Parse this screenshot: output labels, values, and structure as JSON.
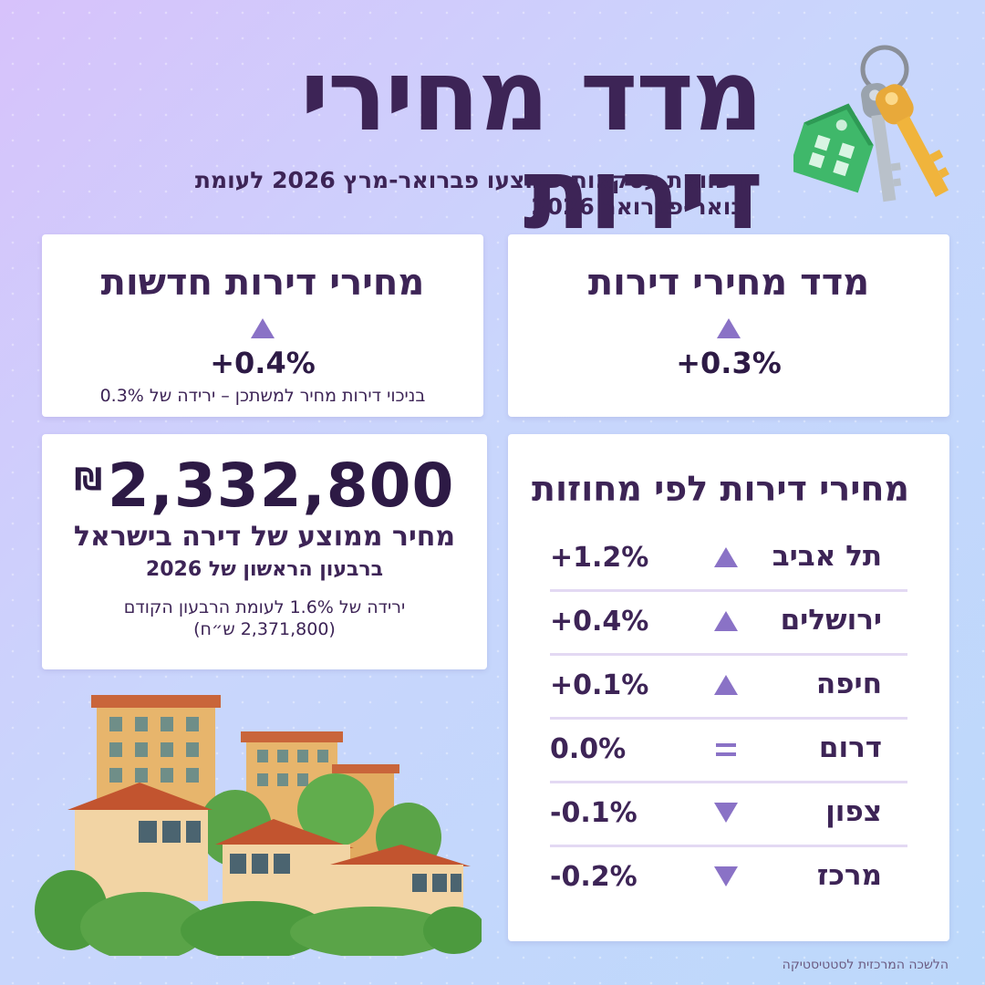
{
  "header": {
    "title": "מדד מחירי דירות",
    "subtitle": "השוואת עסקאות שבוצעו פברואר-מרץ 2026 לעומת ינואר-פברואר 2026"
  },
  "index_card": {
    "title": "מדד מחירי דירות",
    "direction": "up",
    "change": "+0.3%"
  },
  "new_apartments_card": {
    "title": "מחירי דירות חדשות",
    "direction": "up",
    "change": "+0.4%",
    "note": "בניכוי דירות מחיר למשתכן – ירידה של 0.3%"
  },
  "average_price_card": {
    "price": "2,332,800",
    "currency_symbol": "₪",
    "label": "מחיר ממוצע של דירה בישראל",
    "period": "ברבעון הראשון של 2026",
    "note_line1": "ירידה של 1.6% לעומת הרבעון הקודם",
    "note_line2": "(2,371,800 ש״ח)"
  },
  "districts_card": {
    "title": "מחירי דירות לפי מחוזות",
    "rows": [
      {
        "name": "תל אביב",
        "direction": "up",
        "change": "+1.2%"
      },
      {
        "name": "ירושלים",
        "direction": "up",
        "change": "+0.4%"
      },
      {
        "name": "חיפה",
        "direction": "up",
        "change": "+0.1%"
      },
      {
        "name": "דרום",
        "direction": "equal",
        "change": "0.0%"
      },
      {
        "name": "צפון",
        "direction": "down",
        "change": "-0.1%"
      },
      {
        "name": "מרכז",
        "direction": "down",
        "change": "-0.2%"
      }
    ]
  },
  "footer": {
    "source": "הלשכה המרכזית לסטטיסטיקה"
  },
  "colors": {
    "accent": "#8a72c6",
    "text": "#3d2456",
    "key_green": "#3fb86a",
    "key_gold": "#f0b43c"
  },
  "icons": [
    "keys-illustration",
    "buildings-illustration",
    "up-triangle-icon",
    "down-triangle-icon",
    "equal-icon"
  ]
}
